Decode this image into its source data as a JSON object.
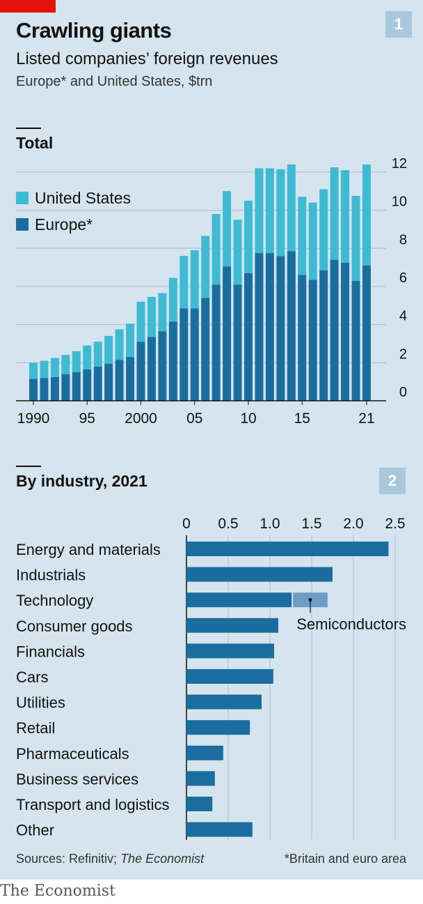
{
  "header": {
    "title": "Crawling giants",
    "subtitle": "Listed companies’ foreign revenues",
    "unit_note": "Europe* and United States, $trn",
    "chart_number_1": "1",
    "chart_number_2": "2"
  },
  "colors": {
    "background": "#d5e4ee",
    "us": "#3ebbd3",
    "europe": "#1a6e9f",
    "semiconductors": "#6e9cc5",
    "brand_red": "#e3120b"
  },
  "chart_data": [
    {
      "type": "bar",
      "stacked": true,
      "title": "Total",
      "x": [
        1990,
        1991,
        1992,
        1993,
        1994,
        1995,
        1996,
        1997,
        1998,
        1999,
        2000,
        2001,
        2002,
        2003,
        2004,
        2005,
        2006,
        2007,
        2008,
        2009,
        2010,
        2011,
        2012,
        2013,
        2014,
        2015,
        2016,
        2017,
        2018,
        2019,
        2020,
        2021
      ],
      "x_tick_values": [
        1990,
        1995,
        2000,
        2005,
        2010,
        2015,
        2021
      ],
      "x_tick_labels": [
        "1990",
        "95",
        "2000",
        "05",
        "10",
        "15",
        "21"
      ],
      "series": [
        {
          "name": "Europe*",
          "color": "#1a6e9f",
          "values": [
            1.15,
            1.2,
            1.25,
            1.4,
            1.5,
            1.65,
            1.8,
            1.95,
            2.15,
            2.3,
            3.1,
            3.35,
            3.65,
            4.15,
            4.85,
            4.85,
            5.4,
            6.1,
            7.05,
            6.1,
            6.7,
            7.75,
            7.75,
            7.6,
            7.85,
            6.6,
            6.35,
            6.85,
            7.4,
            7.25,
            6.3,
            7.1
          ]
        },
        {
          "name": "United States",
          "color": "#3ebbd3",
          "values": [
            0.85,
            0.9,
            1.0,
            1.0,
            1.1,
            1.25,
            1.3,
            1.45,
            1.6,
            1.75,
            2.1,
            2.1,
            2.0,
            2.3,
            2.75,
            3.05,
            3.25,
            3.7,
            3.95,
            3.4,
            3.8,
            4.45,
            4.45,
            4.55,
            4.55,
            4.1,
            4.05,
            4.25,
            4.85,
            4.85,
            4.45,
            5.3
          ]
        }
      ],
      "ylim": [
        0,
        12.8
      ],
      "y_ticks": [
        0,
        2,
        4,
        6,
        8,
        10,
        12
      ],
      "y_tick_labels": [
        "0",
        "2",
        "4",
        "6",
        "8",
        "10",
        "12"
      ],
      "y_axis_side": "right",
      "grid": true,
      "legend_position": "top-left",
      "legend": [
        "United States",
        "Europe*"
      ]
    },
    {
      "type": "bar",
      "orientation": "horizontal",
      "title": "By industry, 2021",
      "categories": [
        "Energy and materials",
        "Industrials",
        "Technology",
        "Consumer goods",
        "Financials",
        "Cars",
        "Utilities",
        "Retail",
        "Pharmaceuticals",
        "Business services",
        "Transport and logistics",
        "Other"
      ],
      "values": [
        2.42,
        1.75,
        1.26,
        1.1,
        1.05,
        1.04,
        0.9,
        0.76,
        0.44,
        0.34,
        0.31,
        0.79
      ],
      "segment": {
        "category": "Technology",
        "name": "Semiconductors",
        "from": 1.26,
        "to": 1.69,
        "color": "#6e9cc5"
      },
      "xlim": [
        0,
        2.6
      ],
      "x_ticks": [
        0,
        0.5,
        1.0,
        1.5,
        2.0,
        2.5
      ],
      "x_tick_labels": [
        "0",
        "0.5",
        "1.0",
        "1.5",
        "2.0",
        "2.5"
      ],
      "x_axis_side": "top",
      "grid": true
    }
  ],
  "footer": {
    "source_prefix": "Sources: Refinitiv; ",
    "source_italic": "The Economist",
    "footnote": "*Britain and euro area",
    "brand": "The Economist"
  }
}
